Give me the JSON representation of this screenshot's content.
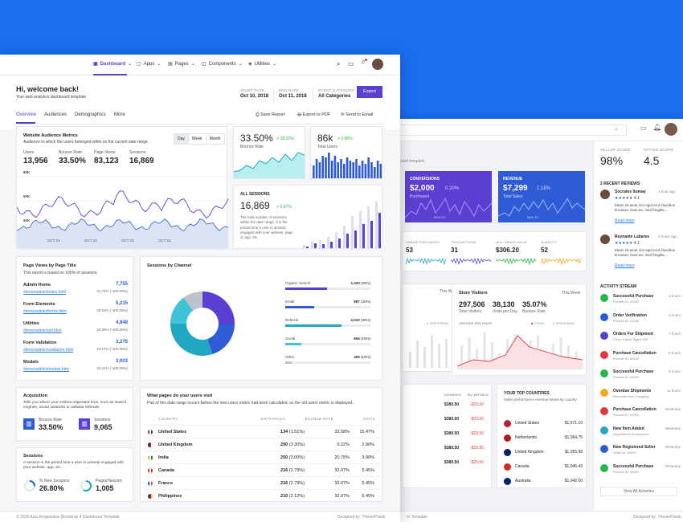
{
  "colors": {
    "bg_blue": "#1a6ef0",
    "accent": "#5b3fd1",
    "primary_blue": "#2f5bd6",
    "teal": "#21a7c1",
    "green": "#26b54a"
  },
  "nav": {
    "items": [
      "Dashboard",
      "Apps",
      "Pages",
      "Components",
      "Utilities"
    ]
  },
  "header": {
    "title": "Hi, welcome back!",
    "subtitle": "Your web analytics dashboard template.",
    "start_date_label": "START DATE",
    "start_date": "Oct 10, 2018",
    "end_date_label": "END DATE",
    "end_date": "Oct 11, 2018",
    "event_label": "EVENT CATEGORY",
    "event_value": "All Categories",
    "export": "Export"
  },
  "tabs": [
    "Overview",
    "Audiences",
    "Demographics",
    "More"
  ],
  "actions": {
    "save": "Save Report",
    "export_pdf": "Export to PDF",
    "email": "Send to Email"
  },
  "audience": {
    "title": "Website Audience Metrics",
    "subtitle": "Audience to which the users belonged while on the current date range.",
    "toggles": [
      "Day",
      "Week",
      "Month"
    ],
    "metrics": [
      {
        "label": "Users",
        "value": "13,956"
      },
      {
        "label": "Bounce Rate",
        "value": "33.50%"
      },
      {
        "label": "Page Views",
        "value": "83,123"
      },
      {
        "label": "Sessions",
        "value": "16,869"
      }
    ],
    "y_ticks": [
      "80K",
      "60K",
      "40K"
    ],
    "x_ticks": [
      "OCT 21",
      "OCT 22",
      "OCT 23",
      "OCT 24"
    ]
  },
  "bounce": {
    "value": "33.50%",
    "change": "18.02%",
    "label": "Bounce Rate"
  },
  "total_users": {
    "value": "86k",
    "change": "0.86%",
    "label": "Total Users"
  },
  "all_sessions": {
    "title": "ALL SESSIONS",
    "value": "16,869",
    "change": "2.87%",
    "desc": "The total number of sessions within the date range. It is the period time a user is actively engaged with your website, page or app, etc."
  },
  "page_views": {
    "title": "Page Views by Page Title",
    "subtitle": "This report is based on 100% of sessions.",
    "rows": [
      {
        "name": "Admin Home",
        "path": "/demo/admin/index.html",
        "pct": "31.74% (-100.00%)",
        "count": "7,755"
      },
      {
        "name": "Form Elements",
        "path": "/demo/admin/forms.html",
        "pct": "28.53% (-100.00%)",
        "count": "5,215"
      },
      {
        "name": "Utilities",
        "path": "/demo/admin/util.html",
        "pct": "25.35% (-100.00%)",
        "count": "4,848"
      },
      {
        "name": "Form Validation",
        "path": "/demo/admin/validation.html",
        "pct": "23.17% (-100.00%)",
        "count": "3,275"
      },
      {
        "name": "Modals",
        "path": "/demo/admin/modals.html",
        "pct": "22.21% (-100.00%)",
        "count": "3,003"
      }
    ]
  },
  "channel": {
    "title": "Sessions by Channel",
    "items": [
      {
        "name": "Organic Search",
        "value": "1,320",
        "pct": "25%",
        "color": "#5b3fd1"
      },
      {
        "name": "Email",
        "value": "987",
        "pct": "20%",
        "color": "#2f5bd6"
      },
      {
        "name": "Referral",
        "value": "2,010",
        "pct": "30%",
        "color": "#21a7c1"
      },
      {
        "name": "Social",
        "value": "654",
        "pct": "15%",
        "color": "#3fc3d6"
      },
      {
        "name": "Other",
        "value": "400",
        "pct": "10%",
        "color": "#bcc3ce"
      }
    ]
  },
  "acquisition": {
    "title": "Acquisition",
    "desc": "Tells you where your visitors originated from, such as search engines, social networks or website referrals.",
    "bounce_label": "Bounce Rate",
    "bounce_value": "33.50%",
    "sessions_label": "Sessions",
    "sessions_value": "9,065"
  },
  "sessions_card": {
    "title": "Sessions",
    "desc": "A session is the period time a user is actively engaged with your website, app, etc.",
    "new_label": "% New Sessions",
    "new_value": "26.80%",
    "pps_label": "Pages/Session",
    "pps_value": "1,005"
  },
  "visit": {
    "title": "What pages do your users visit",
    "subtitle": "Part of this date range occurs before the new users metric had been calculated, so the old users metric is displayed.",
    "headers": [
      "COUNTRY",
      "ENTRANCES",
      "BOUNCE RATE",
      "EXITS"
    ],
    "rows": [
      {
        "country": "United States",
        "entrances": "134",
        "entr_pct": "(1.51%)",
        "bounce": "33.58%",
        "exits": "15.47%"
      },
      {
        "country": "United Kingdom",
        "entrances": "290",
        "entr_pct": "(3.30%)",
        "bounce": "9.22%",
        "exits": "2.90%"
      },
      {
        "country": "India",
        "entrances": "250",
        "entr_pct": "(3.00%)",
        "bounce": "20.75%",
        "exits": "3.90%"
      },
      {
        "country": "Canada",
        "entrances": "216",
        "entr_pct": "(2.79%)",
        "bounce": "32.07%",
        "exits": "5.45%"
      },
      {
        "country": "France",
        "entrances": "216",
        "entr_pct": "(2.79%)",
        "bounce": "32.07%",
        "exits": "5.45%"
      },
      {
        "country": "Philippines",
        "entrances": "210",
        "entr_pct": "(2.12%)",
        "bounce": "32.07%",
        "exits": "5.45%"
      }
    ]
  },
  "footer": {
    "left": "© 2019 Azia Responsive Bootstrap 4 Dashboard Template",
    "right": "Designed by: ThemePixels"
  },
  "back": {
    "breadcrumb": "shboard template",
    "conversions": {
      "label": "CONVERSIONS",
      "value": "$2,000",
      "change": "0.20%",
      "sub": "Purchased",
      "tick": "NOV 21"
    },
    "revenue": {
      "label": "REVENUE",
      "value": "$7,299",
      "change": "1.18%",
      "sub": "Total Sales",
      "tick": "NOV 21"
    },
    "kpis": [
      {
        "label": "UNIQUE PURCHASES",
        "value": "53",
        "color": "#21a7c1"
      },
      {
        "label": "TRANSACTIONS",
        "value": "31",
        "color": "#5b3fd1"
      },
      {
        "label": "AVG. ORDER VALUE",
        "value": "$306.20",
        "color": "#26b54a"
      },
      {
        "label": "QUANTITY",
        "value": "52",
        "color": "#f5a623"
      }
    ],
    "this_week": "This Week",
    "yesterday": "YESTERDAY",
    "today": "TODAY",
    "store": {
      "title": "Store Visitors",
      "week": "This Week",
      "visitors": "297,506",
      "visitors_label": "Total Visitors",
      "per_day": "38,130",
      "per_day_label": "Visits per Day",
      "bounce": "35.07%",
      "bounce_label": "Bounce Rate",
      "per_hour": "VISITORS PER HOUR"
    },
    "earnings_header": [
      "EARNINGS",
      "TAX WITHELD"
    ],
    "earnings": [
      [
        "$380.50",
        "-$23.50"
      ],
      [
        "$380.50",
        "-$23.50"
      ],
      [
        "$380.50",
        "-$23.50"
      ],
      [
        "$380.50",
        "-$23.50"
      ],
      [
        "$380.50",
        "-$23.50"
      ]
    ],
    "top_countries": {
      "title": "YOUR TOP COUNTRIES",
      "sub": "Sales performance revenue based by country",
      "rows": [
        [
          "United States",
          "$1,671.10"
        ],
        [
          "Netherlands",
          "$1,064.75"
        ],
        [
          "United Kingdom",
          "$1,055.98"
        ],
        [
          "Canada",
          "$1,045.49"
        ],
        [
          "Australia",
          "$1,042.00"
        ]
      ]
    },
    "seller": {
      "label": "SELLER SCORE",
      "value": "98%"
    },
    "rating": {
      "label": "RATING SCORE",
      "value": "4.5"
    },
    "reviews_title": "2 RECENT REVIEWS",
    "reviews": [
      {
        "name": "Socrates Itumay",
        "rating": "4.1",
        "time": "1 hour ago",
        "text": "Etiam sit amet orci eget eros faucibus tincidunt. Duis leo. Sed fringilla...",
        "more": "Read more"
      },
      {
        "name": "Reynante Labares",
        "rating": "4.1",
        "time": "2 hours ago",
        "text": "Etiam sit amet orci eget eros faucibus tincidunt. Duis leo. Sed fringilla...",
        "more": "Read more"
      }
    ],
    "activity_title": "ACTIVITY STREAM",
    "activity": [
      {
        "title": "Successful Purchase",
        "sub": "Product ID: #0102",
        "time": "3 hours",
        "color": "#26b54a"
      },
      {
        "title": "Order Verification",
        "sub": "Product ID: #2230",
        "time": "3 hours",
        "color": "#2f5bd6"
      },
      {
        "title": "Orders For Shipment",
        "sub": "Cleon Carlos: Agent #30",
        "time": "7 hours",
        "color": "#5b3fd1"
      },
      {
        "title": "Purchase Cancellation",
        "sub": "Product ID: #0102",
        "time": "9 hours",
        "color": "#e5363d"
      },
      {
        "title": "Successful Purchase",
        "sub": "Product ID: #0102",
        "time": "9 hours",
        "color": "#26b54a"
      },
      {
        "title": "Overdue Shipments",
        "sub": "Reminder from Company",
        "time": "11 hours",
        "color": "#f5a623"
      },
      {
        "title": "Purchase Cancellation",
        "sub": "Product ID: #0102",
        "time": "Yesterday",
        "color": "#e5363d"
      },
      {
        "title": "New Item Added",
        "sub": "Department: Accessories",
        "time": "Yesterday",
        "color": "#21a7c1"
      },
      {
        "title": "New Registered Seller",
        "sub": "Seller ID: #2002",
        "time": "Yesterday",
        "color": "#2f5bd6"
      },
      {
        "title": "Successful Purchase",
        "sub": "Product ID: #0102",
        "time": "Yesterday",
        "color": "#26b54a"
      }
    ],
    "view_all": "View All Activities",
    "footer_left": "m Template",
    "footer_right": "Designed by: ThemePixels"
  }
}
